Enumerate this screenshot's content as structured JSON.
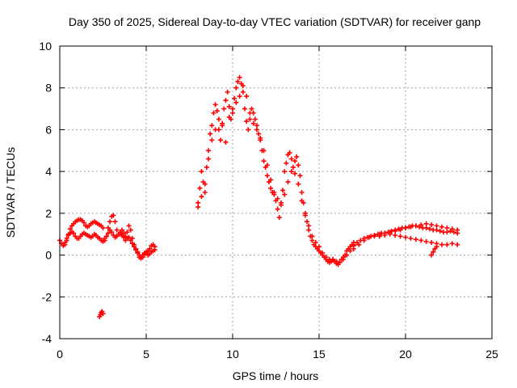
{
  "chart_data": {
    "type": "scatter",
    "title": "Day 350 of 2025, Sidereal Day-to-day VTEC variation (SDTVAR) for receiver ganp",
    "xlabel": "GPS time / hours",
    "ylabel": "SDTVAR / TECUs",
    "xlim": [
      0,
      25
    ],
    "ylim": [
      -4,
      10
    ],
    "xticks": [
      0,
      5,
      10,
      15,
      20,
      25
    ],
    "yticks": [
      -4,
      -2,
      0,
      2,
      4,
      6,
      8,
      10
    ],
    "grid": true,
    "legend": "none",
    "marker": "+",
    "series": [
      {
        "name": "SDTVAR",
        "color": "#ff0000",
        "x": [
          0.0,
          0.1,
          0.2,
          0.3,
          0.4,
          0.5,
          0.6,
          0.7,
          0.8,
          0.9,
          1.0,
          1.1,
          1.2,
          1.3,
          1.4,
          1.5,
          1.6,
          1.7,
          1.8,
          1.9,
          2.0,
          2.1,
          2.2,
          2.3,
          2.4,
          2.5,
          0.3,
          0.4,
          0.5,
          0.6,
          0.7,
          0.8,
          0.9,
          1.0,
          1.1,
          1.2,
          1.3,
          1.4,
          1.5,
          1.6,
          1.7,
          1.8,
          1.9,
          2.0,
          2.1,
          2.2,
          2.3,
          2.4,
          2.5,
          2.6,
          2.7,
          2.8,
          2.9,
          3.0,
          3.1,
          3.2,
          3.3,
          3.4,
          3.5,
          3.6,
          3.7,
          3.8,
          3.9,
          4.0,
          4.1,
          4.2,
          4.3,
          4.4,
          4.5,
          4.6,
          4.7,
          4.8,
          4.9,
          5.0,
          5.1,
          5.2,
          5.3,
          5.4,
          5.5,
          2.6,
          2.7,
          2.8,
          2.9,
          3.0,
          3.1,
          3.2,
          3.3,
          3.4,
          3.5,
          3.6,
          3.7,
          3.8,
          3.9,
          4.0,
          4.1,
          4.2,
          4.3,
          4.4,
          4.5,
          4.6,
          4.7,
          4.8,
          4.9,
          5.0,
          5.1,
          5.2,
          5.3,
          5.4,
          5.5,
          2.3,
          2.35,
          2.4,
          2.45,
          2.5,
          8.0,
          8.1,
          8.2,
          8.3,
          8.4,
          8.5,
          8.6,
          8.7,
          8.8,
          8.9,
          9.0,
          9.1,
          9.2,
          9.3,
          9.4,
          9.5,
          9.6,
          9.7,
          9.8,
          9.9,
          10.0,
          10.1,
          10.2,
          10.3,
          10.4,
          10.5,
          10.6,
          10.7,
          10.8,
          10.9,
          11.0,
          11.1,
          11.2,
          11.3,
          11.4,
          11.5,
          11.6,
          11.7,
          11.8,
          11.9,
          12.0,
          12.1,
          12.2,
          12.3,
          12.4,
          12.5,
          12.6,
          12.7,
          12.8,
          12.9,
          13.0,
          13.1,
          13.2,
          13.3,
          13.4,
          13.5,
          13.6,
          13.7,
          13.8,
          13.9,
          14.0,
          14.1,
          14.2,
          14.3,
          14.4,
          14.5,
          14.6,
          14.7,
          14.8,
          14.9,
          15.0,
          15.1,
          15.2,
          15.3,
          15.4,
          15.5,
          15.6,
          15.7,
          15.8,
          15.9,
          16.0,
          16.1,
          16.2,
          16.3,
          16.4,
          16.5,
          16.6,
          16.7,
          16.8,
          16.9,
          17.0,
          8.0,
          8.2,
          8.4,
          8.6,
          8.8,
          9.0,
          9.2,
          9.4,
          9.6,
          9.8,
          10.0,
          10.2,
          10.4,
          10.6,
          10.8,
          11.0,
          11.2,
          11.4,
          11.6,
          11.8,
          12.0,
          12.2,
          12.4,
          12.6,
          12.8,
          13.0,
          13.2,
          13.4,
          13.6,
          13.8,
          14.0,
          14.2,
          14.4,
          14.6,
          14.8,
          15.0,
          15.2,
          15.4,
          15.6,
          15.8,
          16.0,
          16.2,
          16.4,
          16.6,
          16.8,
          17.0,
          17.0,
          17.2,
          17.4,
          17.6,
          17.8,
          18.0,
          18.2,
          18.4,
          18.6,
          18.8,
          19.0,
          19.2,
          19.4,
          19.6,
          19.8,
          20.0,
          20.2,
          20.4,
          20.6,
          20.8,
          21.0,
          21.2,
          21.4,
          21.6,
          21.8,
          22.0,
          22.2,
          22.4,
          22.6,
          22.8,
          23.0,
          17.0,
          17.3,
          17.6,
          17.9,
          18.2,
          18.5,
          18.8,
          19.1,
          19.4,
          19.7,
          20.0,
          20.3,
          20.6,
          20.9,
          21.2,
          21.5,
          21.8,
          22.1,
          22.4,
          22.7,
          23.0,
          18.5,
          18.8,
          19.1,
          19.4,
          19.7,
          20.0,
          20.3,
          20.6,
          20.9,
          21.2,
          21.5,
          21.8,
          22.1,
          22.4,
          22.7,
          23.0,
          21.5,
          21.6,
          21.7,
          21.8
        ],
        "y": [
          0.7,
          0.55,
          0.45,
          0.5,
          0.7,
          1.0,
          1.25,
          1.4,
          1.5,
          1.6,
          1.65,
          1.7,
          1.7,
          1.65,
          1.55,
          1.4,
          1.35,
          1.4,
          1.5,
          1.55,
          1.6,
          1.55,
          1.5,
          1.45,
          1.4,
          1.3,
          0.6,
          0.8,
          0.95,
          1.05,
          1.1,
          1.05,
          0.9,
          0.8,
          0.8,
          0.9,
          1.0,
          1.05,
          1.0,
          0.95,
          0.9,
          0.85,
          0.9,
          1.0,
          0.95,
          0.85,
          0.8,
          0.7,
          0.65,
          0.7,
          0.9,
          1.3,
          1.6,
          1.85,
          1.9,
          1.6,
          1.2,
          1.0,
          1.1,
          1.2,
          1.05,
          0.9,
          1.1,
          1.4,
          1.2,
          0.8,
          0.5,
          0.3,
          0.1,
          -0.1,
          -0.15,
          0.0,
          0.1,
          0.15,
          0.2,
          0.3,
          0.45,
          0.5,
          0.4,
          0.8,
          0.9,
          1.05,
          1.2,
          1.1,
          0.95,
          0.85,
          0.9,
          1.0,
          1.0,
          0.95,
          0.85,
          0.7,
          0.8,
          0.85,
          0.7,
          0.55,
          0.4,
          0.25,
          0.15,
          0.0,
          -0.15,
          -0.1,
          0.05,
          0.1,
          0.0,
          0.05,
          0.15,
          0.2,
          0.25,
          -2.95,
          -2.85,
          -2.75,
          -2.7,
          -2.8,
          2.5,
          3.2,
          4.0,
          3.5,
          3.0,
          4.2,
          5.0,
          5.8,
          6.2,
          6.8,
          7.2,
          6.9,
          6.0,
          5.5,
          6.3,
          7.0,
          7.4,
          7.8,
          7.1,
          6.5,
          6.8,
          7.5,
          8.0,
          8.3,
          8.5,
          8.2,
          7.8,
          7.0,
          6.4,
          6.0,
          6.5,
          7.0,
          6.8,
          6.5,
          6.2,
          5.8,
          5.5,
          5.0,
          4.5,
          4.2,
          3.8,
          3.5,
          3.2,
          3.0,
          2.9,
          2.6,
          2.2,
          1.8,
          2.4,
          3.1,
          4.0,
          4.4,
          4.8,
          4.9,
          4.6,
          4.2,
          4.5,
          4.7,
          4.3,
          3.8,
          3.0,
          2.5,
          2.0,
          1.6,
          1.2,
          0.9,
          0.7,
          0.5,
          0.4,
          0.3,
          0.2,
          0.1,
          0.0,
          -0.1,
          -0.2,
          -0.3,
          -0.35,
          -0.3,
          -0.2,
          -0.3,
          -0.4,
          -0.45,
          -0.35,
          -0.2,
          -0.1,
          0.0,
          0.2,
          0.3,
          0.4,
          0.5,
          0.6,
          2.3,
          2.8,
          3.4,
          4.6,
          5.5,
          6.0,
          6.5,
          6.2,
          5.4,
          6.6,
          7.0,
          7.3,
          7.6,
          8.1,
          7.6,
          6.8,
          6.3,
          6.0,
          5.6,
          5.0,
          4.3,
          3.6,
          3.0,
          2.7,
          2.5,
          2.9,
          3.5,
          4.0,
          3.9,
          3.4,
          2.6,
          1.9,
          1.4,
          0.9,
          0.6,
          0.4,
          0.1,
          -0.1,
          -0.2,
          -0.25,
          -0.3,
          -0.35,
          -0.2,
          0.0,
          0.2,
          0.45,
          0.5,
          0.6,
          0.7,
          0.8,
          0.85,
          0.9,
          0.95,
          1.0,
          1.05,
          1.05,
          1.1,
          1.15,
          1.2,
          1.25,
          1.3,
          1.3,
          1.35,
          1.4,
          1.4,
          1.35,
          1.3,
          1.3,
          1.25,
          1.2,
          1.2,
          1.15,
          1.1,
          1.1,
          1.15,
          1.1,
          1.05,
          0.3,
          0.5,
          0.7,
          0.85,
          0.9,
          1.0,
          1.05,
          1.1,
          1.15,
          1.2,
          1.3,
          1.35,
          1.4,
          1.45,
          1.5,
          1.45,
          1.4,
          1.35,
          1.3,
          1.25,
          1.2,
          0.9,
          0.95,
          1.0,
          0.95,
          0.9,
          0.85,
          0.8,
          0.75,
          0.7,
          0.65,
          0.6,
          0.55,
          0.5,
          0.5,
          0.55,
          0.5,
          0.0,
          0.15,
          0.3,
          0.4
        ]
      }
    ]
  }
}
